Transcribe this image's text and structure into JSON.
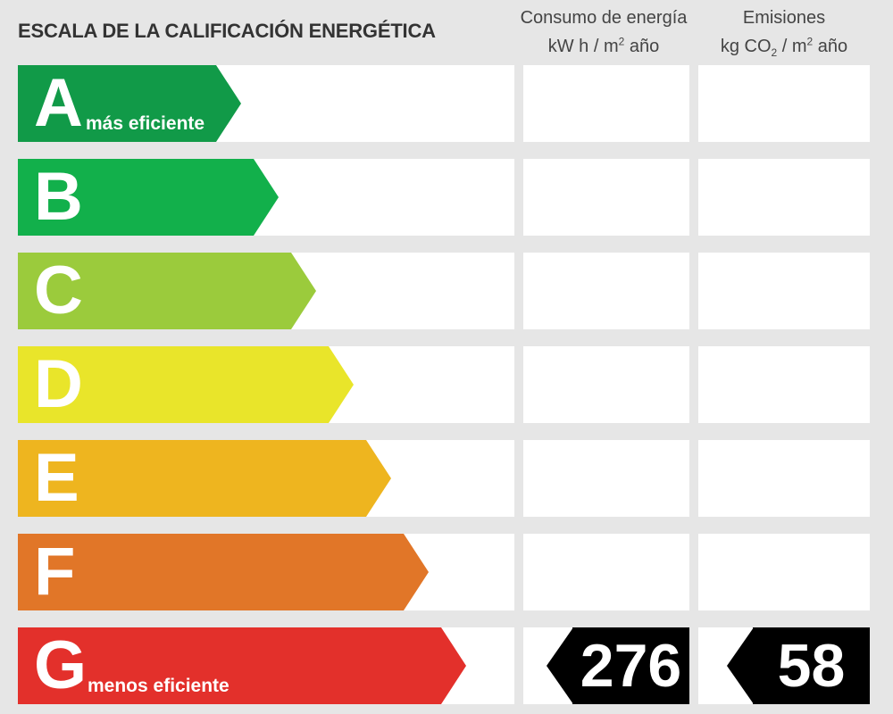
{
  "header": {
    "title": "ESCALA DE LA CALIFICACIÓN ENERGÉTICA",
    "energy_col": {
      "line1": "Consumo de energía",
      "unit_a": "kW h  / m",
      "unit_sup": "2",
      "unit_b": " año"
    },
    "emissions_col": {
      "line1": "Emisiones",
      "unit_a": "kg CO",
      "unit_sub": "2",
      "unit_b": "  / m",
      "unit_sup": "2",
      "unit_c": " año"
    }
  },
  "ratings": [
    {
      "letter": "A",
      "label": "más eficiente",
      "color": "#119a48"
    },
    {
      "letter": "B",
      "label": "",
      "color": "#12b04b"
    },
    {
      "letter": "C",
      "label": "",
      "color": "#9bcb3c"
    },
    {
      "letter": "D",
      "label": "",
      "color": "#e9e52a"
    },
    {
      "letter": "E",
      "label": "",
      "color": "#eeb51f"
    },
    {
      "letter": "F",
      "label": "",
      "color": "#e17628"
    },
    {
      "letter": "G",
      "label": "menos eficiente",
      "color": "#e3302b"
    }
  ],
  "result": {
    "rating": "G",
    "energy_value": "276",
    "emissions_value": "58"
  }
}
